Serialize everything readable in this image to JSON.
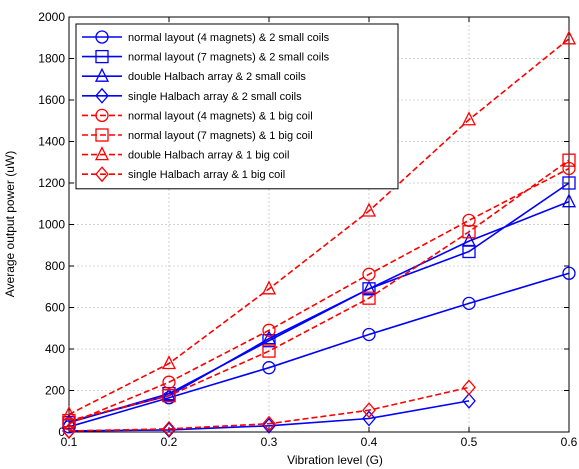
{
  "chart_data": {
    "type": "line",
    "title": "",
    "xlabel": "Vibration level (G)",
    "ylabel": "Average output power (uW)",
    "xlim": [
      0.1,
      0.6
    ],
    "ylim": [
      0,
      2000
    ],
    "x_ticks": [
      "0.1",
      "0.2",
      "0.3",
      "0.4",
      "0.5",
      "0.6"
    ],
    "y_ticks": [
      "0",
      "200",
      "400",
      "600",
      "800",
      "1000",
      "1200",
      "1400",
      "1600",
      "1800",
      "2000"
    ],
    "grid": true,
    "legend_position": "top-left",
    "series": [
      {
        "name": "normal layout (4 magnets) & 2 small coils",
        "color": "#0000ff",
        "dash": "solid",
        "marker": "circle",
        "x": [
          0.1,
          0.2,
          0.3,
          0.4,
          0.5,
          0.6
        ],
        "y": [
          25,
          165,
          310,
          470,
          620,
          765
        ]
      },
      {
        "name": "normal layout (7 magnets) & 2 small coils",
        "color": "#0000ff",
        "dash": "solid",
        "marker": "square",
        "x": [
          0.1,
          0.2,
          0.3,
          0.4,
          0.5,
          0.6
        ],
        "y": [
          45,
          185,
          440,
          690,
          870,
          1200
        ]
      },
      {
        "name": "double Halbach array & 2 small coils",
        "color": "#0000ff",
        "dash": "solid",
        "marker": "triangle",
        "x": [
          0.1,
          0.2,
          0.3,
          0.4,
          0.5,
          0.6
        ],
        "y": [
          50,
          175,
          450,
          690,
          920,
          1110
        ]
      },
      {
        "name": "single Halbach array & 2 small coils",
        "color": "#0000ff",
        "dash": "solid",
        "marker": "diamond",
        "x": [
          0.1,
          0.2,
          0.3,
          0.4,
          0.5
        ],
        "y": [
          5,
          10,
          30,
          65,
          150
        ]
      },
      {
        "name": "normal layout (4 magnets) & 1 big coil",
        "color": "#ff0000",
        "dash": "dashed",
        "marker": "circle",
        "x": [
          0.1,
          0.2,
          0.3,
          0.4,
          0.5,
          0.6
        ],
        "y": [
          40,
          240,
          490,
          760,
          1020,
          1270
        ]
      },
      {
        "name": "normal layout (7 magnets) & 1 big coil",
        "color": "#ff0000",
        "dash": "dashed",
        "marker": "square",
        "x": [
          0.1,
          0.2,
          0.3,
          0.4,
          0.5,
          0.6
        ],
        "y": [
          55,
          175,
          390,
          645,
          965,
          1310
        ]
      },
      {
        "name": "double Halbach array & 1 big coil",
        "color": "#ff0000",
        "dash": "dashed",
        "marker": "triangle",
        "x": [
          0.1,
          0.2,
          0.3,
          0.4,
          0.5,
          0.6
        ],
        "y": [
          85,
          330,
          690,
          1065,
          1505,
          1895
        ]
      },
      {
        "name": "single Halbach array & 1 big coil",
        "color": "#ff0000",
        "dash": "dashed",
        "marker": "diamond",
        "x": [
          0.1,
          0.2,
          0.3,
          0.4,
          0.5
        ],
        "y": [
          5,
          15,
          40,
          105,
          215
        ]
      }
    ]
  }
}
